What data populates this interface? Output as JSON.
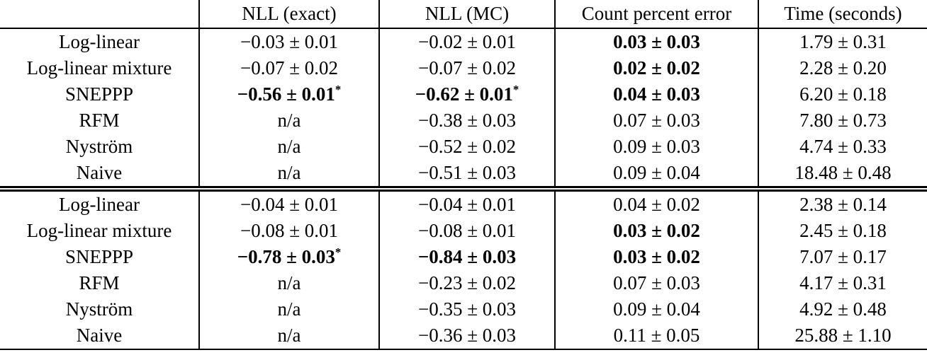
{
  "table": {
    "columns": [
      "",
      "NLL (exact)",
      "NLL (MC)",
      "Count percent error",
      "Time (seconds)"
    ],
    "blocks": [
      {
        "rows": [
          {
            "label": "Log-linear",
            "cells": [
              {
                "text": "−0.03 ± 0.01",
                "bold": false
              },
              {
                "text": "−0.02 ± 0.01",
                "bold": false
              },
              {
                "text": "0.03 ± 0.03",
                "bold": true
              },
              {
                "text": "1.79 ± 0.31",
                "bold": false
              }
            ]
          },
          {
            "label": "Log-linear mixture",
            "cells": [
              {
                "text": "−0.07 ± 0.02",
                "bold": false
              },
              {
                "text": "−0.07 ± 0.02",
                "bold": false
              },
              {
                "text": "0.02 ± 0.02",
                "bold": true
              },
              {
                "text": "2.28 ± 0.20",
                "bold": false
              }
            ]
          },
          {
            "label": "SNEPPP",
            "cells": [
              {
                "text": "−0.56 ± 0.01",
                "bold": true,
                "sup": "*"
              },
              {
                "text": "−0.62 ± 0.01",
                "bold": true,
                "sup": "*"
              },
              {
                "text": "0.04 ± 0.03",
                "bold": true
              },
              {
                "text": "6.20 ± 0.18",
                "bold": false
              }
            ]
          },
          {
            "label": "RFM",
            "cells": [
              {
                "text": "n/a",
                "bold": false
              },
              {
                "text": "−0.38 ± 0.03",
                "bold": false
              },
              {
                "text": "0.07 ± 0.03",
                "bold": false
              },
              {
                "text": "7.80 ± 0.73",
                "bold": false
              }
            ]
          },
          {
            "label": "Nyström",
            "cells": [
              {
                "text": "n/a",
                "bold": false
              },
              {
                "text": "−0.52 ± 0.02",
                "bold": false
              },
              {
                "text": "0.09 ± 0.03",
                "bold": false
              },
              {
                "text": "4.74 ± 0.33",
                "bold": false
              }
            ]
          },
          {
            "label": "Naive",
            "cells": [
              {
                "text": "n/a",
                "bold": false
              },
              {
                "text": "−0.51 ± 0.03",
                "bold": false
              },
              {
                "text": "0.09 ± 0.04",
                "bold": false
              },
              {
                "text": "18.48 ± 0.48",
                "bold": false
              }
            ]
          }
        ]
      },
      {
        "rows": [
          {
            "label": "Log-linear",
            "cells": [
              {
                "text": "−0.04 ± 0.01",
                "bold": false
              },
              {
                "text": "−0.04 ± 0.01",
                "bold": false
              },
              {
                "text": "0.04 ± 0.02",
                "bold": false
              },
              {
                "text": "2.38 ± 0.14",
                "bold": false
              }
            ]
          },
          {
            "label": "Log-linear mixture",
            "cells": [
              {
                "text": "−0.08 ± 0.01",
                "bold": false
              },
              {
                "text": "−0.08 ± 0.01",
                "bold": false
              },
              {
                "text": "0.03 ± 0.02",
                "bold": true
              },
              {
                "text": "2.45 ± 0.18",
                "bold": false
              }
            ]
          },
          {
            "label": "SNEPPP",
            "cells": [
              {
                "text": "−0.78 ± 0.03",
                "bold": true,
                "sup": "*"
              },
              {
                "text": "−0.84 ± 0.03",
                "bold": true
              },
              {
                "text": "0.03 ± 0.02",
                "bold": true
              },
              {
                "text": "7.07 ± 0.17",
                "bold": false
              }
            ]
          },
          {
            "label": "RFM",
            "cells": [
              {
                "text": "n/a",
                "bold": false
              },
              {
                "text": "−0.23 ± 0.02",
                "bold": false
              },
              {
                "text": "0.07 ± 0.03",
                "bold": false
              },
              {
                "text": "4.17 ± 0.31",
                "bold": false
              }
            ]
          },
          {
            "label": "Nyström",
            "cells": [
              {
                "text": "n/a",
                "bold": false
              },
              {
                "text": "−0.35 ± 0.03",
                "bold": false
              },
              {
                "text": "0.09 ± 0.04",
                "bold": false
              },
              {
                "text": "4.92 ± 0.48",
                "bold": false
              }
            ]
          },
          {
            "label": "Naive",
            "cells": [
              {
                "text": "n/a",
                "bold": false
              },
              {
                "text": "−0.36 ± 0.03",
                "bold": false
              },
              {
                "text": "0.11 ± 0.05",
                "bold": false
              },
              {
                "text": "25.88 ± 1.10",
                "bold": false
              }
            ]
          }
        ]
      }
    ]
  }
}
